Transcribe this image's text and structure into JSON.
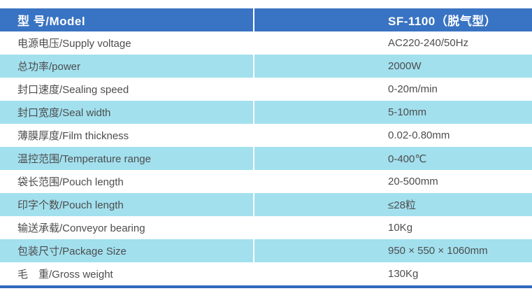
{
  "table": {
    "header": {
      "label": "型 号/Model",
      "value": "SF-1100（脱气型）"
    },
    "rows": [
      {
        "label": "电源电压/Supply voltage",
        "value": "AC220-240/50Hz"
      },
      {
        "label": "总功率/power",
        "value": "2000W"
      },
      {
        "label": "封口速度/Sealing speed",
        "value": "0-20m/min"
      },
      {
        "label": "封口宽度/Seal width",
        "value": "5-10mm"
      },
      {
        "label": "薄膜厚度/Film thickness",
        "value": "0.02-0.80mm"
      },
      {
        "label": "温控范围/Temperature range",
        "value": "0-400℃"
      },
      {
        "label": "袋长范围/Pouch length",
        "value": "20-500mm"
      },
      {
        "label": "印字个数/Pouch length",
        "value": "≤28粒"
      },
      {
        "label": "输送承载/Conveyor bearing",
        "value": "10Kg"
      },
      {
        "label": "包装尺寸/Package Size",
        "value": "950 × 550 × 1060mm"
      },
      {
        "label": "毛　重/Gross weight",
        "value": "130Kg"
      }
    ]
  },
  "colors": {
    "header_bg": "#3973c3",
    "alt_row_bg": "#a2e0ee",
    "bottom_rule": "#2e6abc",
    "header_text": "#ffffff",
    "body_text": "#4d4d4d"
  }
}
